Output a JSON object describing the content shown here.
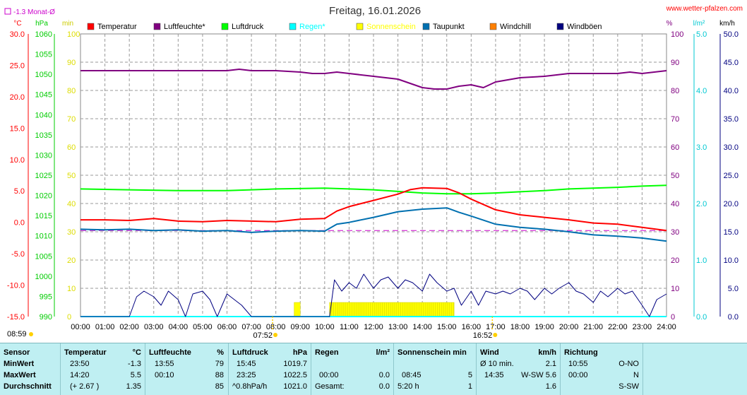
{
  "header": {
    "title": "Freitag, 16.01.2026",
    "site": "www.wetter-pfalzen.com",
    "monat_label": "-1.3 Monat-Ø"
  },
  "axes": {
    "temp": {
      "unit": "°C",
      "ticks": [
        "30.0",
        "25.0",
        "20.0",
        "15.0",
        "10.0",
        "5.0",
        "0.0",
        "-5.0",
        "-10.0",
        "-15.0"
      ],
      "color": "#ff0000"
    },
    "press": {
      "unit": "hPa",
      "ticks": [
        "1060",
        "1055",
        "1050",
        "1045",
        "1040",
        "1035",
        "1030",
        "1025",
        "1020",
        "1015",
        "1010",
        "1005",
        "1000",
        "995",
        "990"
      ],
      "color": "#00cc00"
    },
    "min": {
      "unit": "min",
      "ticks": [
        "100",
        "90",
        "80",
        "70",
        "60",
        "50",
        "40",
        "30",
        "20",
        "10",
        "0"
      ],
      "color": "#dddd00"
    },
    "pct": {
      "unit": "%",
      "ticks": [
        "100",
        "90",
        "80",
        "70",
        "60",
        "50",
        "40",
        "30",
        "20",
        "10",
        "0"
      ],
      "color": "#800080"
    },
    "rain": {
      "unit": "l/m²",
      "ticks": [
        "5.0",
        "4.0",
        "3.0",
        "2.0",
        "1.0",
        "0.0"
      ],
      "color": "#00c8d2"
    },
    "wind": {
      "unit": "km/h",
      "ticks": [
        "50.0",
        "45.0",
        "40.0",
        "35.0",
        "30.0",
        "25.0",
        "20.0",
        "15.0",
        "10.0",
        "5.0",
        "0.0"
      ],
      "color": "#000080"
    },
    "time_ticks": [
      "00:00",
      "01:00",
      "02:00",
      "03:00",
      "04:00",
      "05:00",
      "06:00",
      "07:00",
      "08:00",
      "09:00",
      "10:00",
      "11:00",
      "12:00",
      "13:00",
      "14:00",
      "15:00",
      "16:00",
      "17:00",
      "18:00",
      "19:00",
      "20:00",
      "21:00",
      "22:00",
      "23:00",
      "24:00"
    ],
    "sunrise": "07:52",
    "sunset": "16:52",
    "sun_hours": "08:59"
  },
  "legend": [
    {
      "label": "Temperatur",
      "color": "#ff0000"
    },
    {
      "label": "Luftfeuchte*",
      "color": "#800080"
    },
    {
      "label": "Luftdruck",
      "color": "#00ff00"
    },
    {
      "label": "Regen*",
      "color": "#00ffff"
    },
    {
      "label": "Sonnenschein",
      "color": "#ffff00"
    },
    {
      "label": "Taupunkt",
      "color": "#0070b0"
    },
    {
      "label": "Windchill",
      "color": "#ff8000"
    },
    {
      "label": "Windböen",
      "color": "#000080"
    }
  ],
  "chart_data": {
    "type": "line",
    "title": "Freitag, 16.01.2026",
    "x_range": [
      "00:00",
      "24:00"
    ],
    "monthly_avg_temp": -1.3,
    "series": [
      {
        "name": "Temperatur",
        "unit": "°C",
        "color": "#ff0000",
        "x": [
          0,
          1,
          2,
          3,
          4,
          5,
          6,
          7,
          8,
          9,
          10,
          10.5,
          11,
          12,
          13,
          13.5,
          14,
          15,
          15.5,
          16,
          17,
          18,
          19,
          20,
          21,
          22,
          23,
          24
        ],
        "values": [
          0.4,
          0.4,
          0.3,
          0.6,
          0.2,
          0.1,
          0.3,
          0.2,
          0.1,
          0.5,
          0.6,
          1.8,
          2.5,
          3.5,
          4.5,
          5.2,
          5.5,
          5.4,
          4.7,
          3.7,
          2.0,
          1.2,
          0.8,
          0.4,
          -0.1,
          -0.3,
          -0.8,
          -1.3
        ]
      },
      {
        "name": "Luftfeuchte*",
        "unit": "%",
        "color": "#800080",
        "x": [
          0,
          1,
          2,
          3,
          4,
          5,
          6,
          6.5,
          7,
          8,
          9,
          9.5,
          10,
          10.5,
          11,
          12,
          13,
          14,
          14.5,
          15,
          15.5,
          16,
          16.5,
          17,
          18,
          19,
          20,
          21,
          22,
          22.5,
          23,
          24
        ],
        "values": [
          87,
          87,
          87,
          87,
          87,
          87,
          87,
          87.5,
          87,
          87,
          86.5,
          86,
          86,
          86.5,
          86,
          85,
          84,
          81,
          80.5,
          80.5,
          81.5,
          82,
          81,
          83,
          84.5,
          85,
          86,
          86,
          86,
          86.5,
          86,
          87
        ]
      },
      {
        "name": "Luftdruck",
        "unit": "hPa",
        "color": "#00ff00",
        "x": [
          0,
          2,
          4,
          6,
          8,
          10,
          11,
          12,
          13,
          14,
          15,
          16,
          17,
          18,
          19,
          20,
          21,
          22,
          23,
          24
        ],
        "values": [
          1021.6,
          1021.4,
          1021.2,
          1021.2,
          1021.6,
          1021.8,
          1021.6,
          1021.4,
          1021.0,
          1020.6,
          1020.4,
          1020.4,
          1020.6,
          1020.9,
          1021.2,
          1021.6,
          1021.8,
          1022.0,
          1022.3,
          1022.5
        ]
      },
      {
        "name": "Regen*",
        "unit": "l/m²",
        "color": "#00ffff",
        "x": [
          0,
          24
        ],
        "values": [
          0.0,
          0.0
        ]
      },
      {
        "name": "Sonnenschein",
        "unit": "min",
        "color": "#ffff00",
        "x": [
          8.75,
          9.0,
          10.2,
          15.3
        ],
        "values": [
          5,
          5,
          5,
          5
        ]
      },
      {
        "name": "Taupunkt",
        "unit": "°C",
        "color": "#0070b0",
        "x": [
          0,
          1,
          2,
          3,
          4,
          5,
          6,
          7,
          8,
          9,
          10,
          10.5,
          11,
          12,
          13,
          14,
          15,
          15.5,
          16,
          17,
          18,
          19,
          20,
          21,
          22,
          23,
          24
        ],
        "values": [
          -1.1,
          -1.2,
          -1.1,
          -1.3,
          -1.2,
          -1.4,
          -1.3,
          -1.6,
          -1.4,
          -1.3,
          -1.4,
          -0.3,
          0.0,
          0.8,
          1.7,
          2.1,
          2.3,
          1.6,
          1.0,
          -0.3,
          -0.8,
          -1.1,
          -1.5,
          -2.0,
          -2.2,
          -2.5,
          -3.0
        ]
      },
      {
        "name": "Windböen",
        "unit": "km/h",
        "color": "#000080",
        "x": [
          0,
          1,
          2,
          2.3,
          2.6,
          3,
          3.3,
          3.6,
          4,
          4.3,
          4.6,
          5,
          5.3,
          5.6,
          6,
          6.3,
          6.6,
          7,
          7.3,
          7.6,
          8,
          9,
          10,
          10.2,
          10.4,
          10.7,
          11,
          11.3,
          11.6,
          12,
          12.3,
          12.6,
          13,
          13.3,
          13.6,
          14,
          14.3,
          14.6,
          15,
          15.3,
          15.6,
          16,
          16.3,
          16.6,
          17,
          17.3,
          17.6,
          18,
          18.3,
          18.6,
          19,
          19.3,
          19.6,
          20,
          20.3,
          20.6,
          21,
          21.3,
          21.6,
          22,
          22.3,
          22.6,
          23,
          23.3,
          23.6,
          24
        ],
        "values": [
          0,
          0,
          0,
          3.5,
          4.5,
          3.5,
          2,
          4.5,
          3,
          0,
          4,
          4.5,
          3,
          0,
          4,
          3,
          2,
          0,
          0,
          0,
          0,
          0,
          0,
          0,
          6.5,
          4.5,
          6,
          5,
          7.5,
          5,
          6.5,
          7,
          5,
          6.5,
          6,
          4.5,
          7.5,
          6,
          4.5,
          5,
          2,
          4.5,
          2,
          4.5,
          4,
          4.5,
          4,
          5,
          4.5,
          3,
          5,
          4,
          5,
          6,
          4.5,
          4,
          2.5,
          4.5,
          3.5,
          5,
          4,
          4.5,
          2,
          0,
          3,
          4
        ]
      }
    ]
  },
  "summary": {
    "headers": {
      "sensor": "Sensor",
      "temp": "Temperatur",
      "temp_unit": "°C",
      "hum": "Luftfeuchte",
      "hum_unit": "%",
      "press": "Luftdruck",
      "press_unit": "hPa",
      "rain": "Regen",
      "rain_unit": "l/m²",
      "sun": "Sonnenschein min",
      "wind": "Wind",
      "wind_unit": "km/h",
      "dir": "Richtung"
    },
    "rows": [
      {
        "label": "MinWert",
        "temp_t": "23:50",
        "temp_v": "-1.3",
        "hum_t": "13:55",
        "hum_v": "79",
        "press_t": "15:45",
        "press_v": "1019.7",
        "rain_t": "",
        "rain_v": "",
        "sun_t": "",
        "sun_v": "",
        "wind_t": "Ø 10 min.",
        "wind_v": "2.1",
        "dir_t": "10:55",
        "dir_v": "O-NO"
      },
      {
        "label": "MaxWert",
        "temp_t": "14:20",
        "temp_v": "5.5",
        "hum_t": "00:10",
        "hum_v": "88",
        "press_t": "23:25",
        "press_v": "1022.5",
        "rain_t": "00:00",
        "rain_v": "0.0",
        "sun_t": "08:45",
        "sun_v": "5",
        "wind_t": "14:35",
        "wind_v": "W-SW 5.6",
        "dir_t": "00:00",
        "dir_v": "N"
      },
      {
        "label": "Durchschnitt",
        "temp_t": "(+ 2.67 )",
        "temp_v": "1.35",
        "hum_t": "",
        "hum_v": "85",
        "press_t": "^0.8hPa/h",
        "press_v": "1021.0",
        "rain_t": "Gesamt:",
        "rain_v": "0.0",
        "sun_t": "5:20 h",
        "sun_v": "1",
        "wind_t": "",
        "wind_v": "1.6",
        "dir_t": "",
        "dir_v": "S-SW"
      }
    ]
  }
}
